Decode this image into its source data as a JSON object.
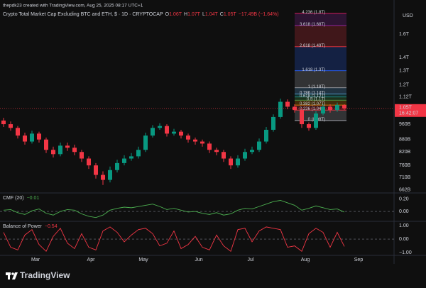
{
  "header": {
    "attribution": "thepdk23 created with TradingView.com, Aug 25, 2025 08:17 UTC+1"
  },
  "footer": {
    "brand": "TradingView"
  },
  "chart_data": [
    {
      "type": "candlestick",
      "title": "Crypto Total Market Cap Excluding BTC and ETH, $ · 1D · CRYPTOCAP",
      "ohlc_legend": [
        {
          "key": "O",
          "value": "1.06T"
        },
        {
          "key": "H",
          "value": "1.07T"
        },
        {
          "key": "L",
          "value": "1.04T"
        },
        {
          "key": "C",
          "value": "1.05T"
        }
      ],
      "change": "−17.49B (−1.64%)",
      "currency": "USD",
      "categories": [
        null,
        null,
        null,
        null,
        null,
        null,
        null,
        null,
        null,
        null,
        null,
        null,
        null,
        null,
        null,
        null,
        null,
        null,
        null,
        null,
        null,
        null,
        null,
        null,
        null,
        null,
        null,
        null,
        null,
        null,
        null,
        null,
        null,
        null,
        null,
        null,
        null,
        null,
        null,
        null,
        null,
        null,
        null,
        null,
        null,
        null,
        null,
        null,
        null
      ],
      "open": [
        980,
        960,
        940,
        900,
        870,
        910,
        880,
        830,
        810,
        850,
        840,
        820,
        790,
        760,
        720,
        700,
        740,
        770,
        790,
        800,
        830,
        900,
        940,
        950,
        910,
        920,
        900,
        880,
        870,
        860,
        830,
        820,
        790,
        760,
        790,
        820,
        830,
        870,
        930,
        1000,
        1090,
        1060,
        1040,
        960,
        940,
        1020,
        1060,
        1040,
        1070
      ],
      "high": [
        995,
        975,
        950,
        915,
        925,
        920,
        890,
        845,
        865,
        865,
        855,
        830,
        800,
        770,
        735,
        755,
        785,
        805,
        815,
        845,
        915,
        955,
        965,
        960,
        935,
        930,
        910,
        890,
        880,
        870,
        840,
        830,
        800,
        805,
        835,
        845,
        885,
        945,
        1015,
        1110,
        1105,
        1075,
        1050,
        970,
        1035,
        1075,
        1075,
        1085,
        1075
      ],
      "low": [
        945,
        925,
        885,
        855,
        860,
        865,
        815,
        795,
        800,
        825,
        805,
        775,
        745,
        705,
        680,
        690,
        730,
        760,
        780,
        790,
        820,
        890,
        930,
        895,
        900,
        885,
        865,
        855,
        845,
        815,
        805,
        775,
        745,
        750,
        780,
        810,
        820,
        860,
        920,
        990,
        1045,
        1025,
        940,
        925,
        930,
        1010,
        1025,
        1030,
        1040
      ],
      "close": [
        960,
        940,
        900,
        870,
        910,
        880,
        830,
        810,
        850,
        840,
        820,
        790,
        760,
        720,
        700,
        740,
        770,
        790,
        800,
        830,
        900,
        940,
        950,
        910,
        920,
        900,
        880,
        870,
        860,
        830,
        820,
        790,
        760,
        790,
        820,
        830,
        870,
        930,
        1000,
        1090,
        1060,
        1040,
        960,
        940,
        1020,
        1060,
        1040,
        1070,
        1050
      ],
      "up_color": "#089981",
      "down_color": "#f23645",
      "xticks": [
        {
          "value": 4.5,
          "label": "Mar"
        },
        {
          "value": 12.3,
          "label": "Apr"
        },
        {
          "value": 19.7,
          "label": "May"
        },
        {
          "value": 27.5,
          "label": "Jun"
        },
        {
          "value": 34.8,
          "label": "Jul"
        },
        {
          "value": 42.5,
          "label": "Aug"
        },
        {
          "value": 50,
          "label": "Sep"
        }
      ],
      "log_scale": true,
      "ylim": [
        650,
        1850
      ],
      "yticks": [
        {
          "value": 1600,
          "label": "1.6T"
        },
        {
          "value": 1400,
          "label": "1.4T"
        },
        {
          "value": 1300,
          "label": "1.3T"
        },
        {
          "value": 1200,
          "label": "1.2T"
        },
        {
          "value": 1120,
          "label": "1.12T"
        },
        {
          "value": 960,
          "label": "960B"
        },
        {
          "value": 880,
          "label": "880B"
        },
        {
          "value": 820,
          "label": "820B"
        },
        {
          "value": 760,
          "label": "760B"
        },
        {
          "value": 710,
          "label": "710B"
        },
        {
          "value": 662,
          "label": "662B"
        }
      ],
      "last_price": {
        "value": 1050,
        "label": "1.05T",
        "countdown": "16:42:07"
      },
      "fib_levels": [
        {
          "value": 1800,
          "label": "4.236 (1.8T)",
          "color": "#e91e63"
        },
        {
          "value": 1680,
          "label": "3.618 (1.68T)",
          "color": "#9c27b0"
        },
        {
          "value": 1490,
          "label": "2.618 (1.49T)",
          "color": "#f23645"
        },
        {
          "value": 1300,
          "label": "1.618 (1.3T)",
          "color": "#2962ff"
        },
        {
          "value": 1180,
          "label": "1 (1.18T)",
          "color": "#b2b5be"
        },
        {
          "value": 1140,
          "label": "0.786 (1.14T)",
          "color": "#64b5f6"
        },
        {
          "value": 1120,
          "label": "0.618 (1.12T)",
          "color": "#26a69a"
        },
        {
          "value": 1100,
          "label": "0.5 (1.1T)",
          "color": "#4caf50"
        },
        {
          "value": 1070,
          "label": "0.382 (1.07T)",
          "color": "#ff9800"
        },
        {
          "value": 1040,
          "label": "0.236 (1.04T)",
          "color": "#f23645"
        },
        {
          "value": 980,
          "label": "0 (0.98T)",
          "color": "#b2b5be"
        }
      ]
    },
    {
      "type": "line",
      "title": "CMF (20)",
      "last_label": "−0.01",
      "color": "#4caf50",
      "values": [
        0.02,
        0.03,
        -0.02,
        -0.05,
        0.01,
        0.04,
        -0.03,
        -0.06,
        0.0,
        0.03,
        0.02,
        -0.04,
        -0.08,
        -0.1,
        -0.06,
        0.02,
        0.05,
        0.07,
        0.06,
        0.08,
        0.1,
        0.12,
        0.08,
        0.03,
        0.05,
        0.02,
        -0.01,
        0.0,
        -0.03,
        -0.05,
        -0.02,
        -0.06,
        -0.04,
        0.02,
        0.05,
        0.04,
        0.08,
        0.12,
        0.16,
        0.18,
        0.14,
        0.1,
        0.02,
        0.05,
        0.09,
        0.06,
        0.03,
        0.04,
        -0.01
      ],
      "ylim": [
        -0.15,
        0.29
      ],
      "yticks": [
        {
          "value": 0.2,
          "label": "0.20"
        },
        {
          "value": 0,
          "label": "0.00"
        }
      ]
    },
    {
      "type": "line",
      "title": "Balance of Power",
      "last_label": "−0.54",
      "color": "#f23645",
      "values": [
        0.5,
        -0.6,
        -0.8,
        0.3,
        0.7,
        -0.4,
        -0.9,
        0.2,
        0.8,
        -0.3,
        -0.7,
        0.4,
        -0.6,
        -0.8,
        0.6,
        0.9,
        0.5,
        -0.2,
        0.3,
        0.7,
        0.8,
        0.4,
        -0.5,
        -0.3,
        0.6,
        -0.7,
        -0.4,
        0.2,
        -0.6,
        -0.8,
        0.3,
        -0.5,
        -0.9,
        0.7,
        0.8,
        -0.2,
        0.6,
        0.9,
        0.8,
        0.7,
        -0.6,
        -0.5,
        -0.9,
        0.4,
        0.8,
        0.5,
        -0.6,
        0.5,
        -0.54
      ],
      "ylim": [
        -1.2,
        1.26
      ],
      "yticks": [
        {
          "value": 1,
          "label": "1.00"
        },
        {
          "value": 0,
          "label": "0.00"
        },
        {
          "value": -1,
          "label": "−1.00"
        }
      ]
    }
  ]
}
